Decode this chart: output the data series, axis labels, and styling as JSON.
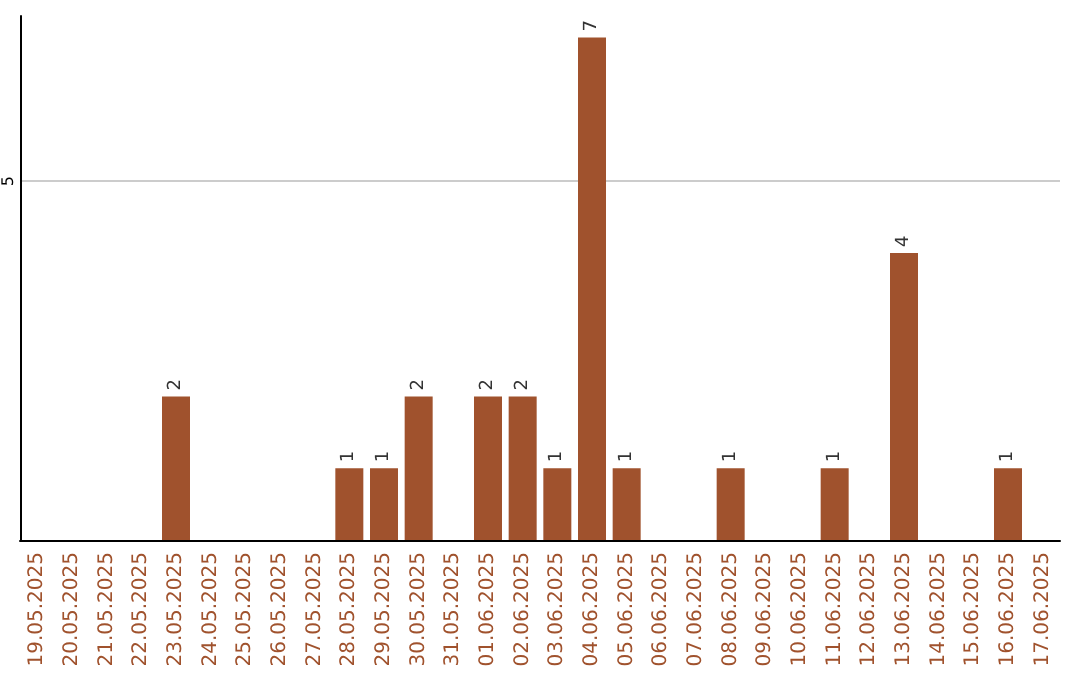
{
  "chart_data": {
    "type": "bar",
    "categories": [
      "19.05.2025",
      "20.05.2025",
      "21.05.2025",
      "22.05.2025",
      "23.05.2025",
      "24.05.2025",
      "25.05.2025",
      "26.05.2025",
      "27.05.2025",
      "28.05.2025",
      "29.05.2025",
      "30.05.2025",
      "31.05.2025",
      "01.06.2025",
      "02.06.2025",
      "03.06.2025",
      "04.06.2025",
      "05.06.2025",
      "06.06.2025",
      "07.06.2025",
      "08.06.2025",
      "09.06.2025",
      "10.06.2025",
      "11.06.2025",
      "12.06.2025",
      "13.06.2025",
      "14.06.2025",
      "15.06.2025",
      "16.06.2025",
      "17.06.2025"
    ],
    "values": [
      null,
      null,
      null,
      null,
      2,
      null,
      null,
      null,
      null,
      1,
      1,
      2,
      null,
      2,
      2,
      1,
      7,
      1,
      null,
      null,
      1,
      null,
      null,
      1,
      null,
      4,
      null,
      null,
      1,
      null
    ],
    "color": "#a0522d",
    "ylim": [
      0,
      7.3
    ],
    "yticks": [
      5
    ],
    "grid": "y",
    "data_labels": true
  }
}
